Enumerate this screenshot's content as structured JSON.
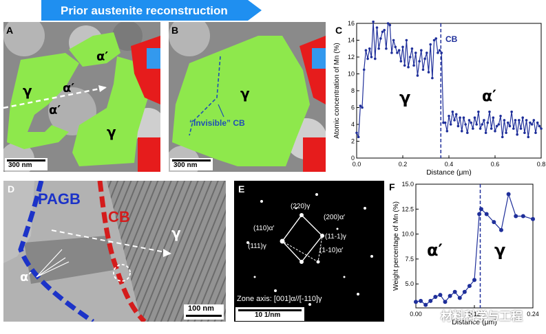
{
  "banner": {
    "text": "Prior austenite reconstruction",
    "color": "#1f8ff0"
  },
  "panels": {
    "A": {
      "label": "A",
      "gamma_top": "γ",
      "gamma_bottom": "γ",
      "alpha1": "α′",
      "alpha2": "α′",
      "alpha3": "α′",
      "scalebar": "300 nm"
    },
    "B": {
      "label": "B",
      "gamma": "γ",
      "annotation": "“Invisible” CB",
      "scalebar": "300 nm"
    },
    "C": {
      "label": "C",
      "cb_label": "CB",
      "gamma": "γ",
      "alpha": "α′"
    },
    "D": {
      "label": "D",
      "pagb": "PAGB",
      "cb": "CB",
      "gamma": "γ",
      "alpha": "α′",
      "scalebar": "100 nm"
    },
    "E": {
      "label": "E",
      "spots": [
        "(220)γ",
        "(200)α′",
        "(110)α′",
        "(111)γ",
        "(11-1)γ",
        "(1-10)α′"
      ],
      "zone_axis": "Zone axis: [001]α//[-110]γ",
      "scalebar": "10 1/nm"
    },
    "F": {
      "label": "F",
      "alpha": "α′",
      "gamma": "γ",
      "watermark": "材料科学与工程"
    }
  },
  "chart_data": [
    {
      "type": "line",
      "panel": "C",
      "xlabel": "Distance (μm)",
      "ylabel": "Atomic concentration of Mn (%)",
      "xlim": [
        0,
        0.8
      ],
      "ylim": [
        0,
        16
      ],
      "xticks": [
        "0.0",
        "0.2",
        "0.4",
        "0.6",
        "0.8"
      ],
      "yticks": [
        "0",
        "2",
        "4",
        "6",
        "8",
        "10",
        "12",
        "14",
        "16"
      ],
      "color": "#1f2f9a",
      "boundary_x": 0.365,
      "x": [
        0.0,
        0.008,
        0.016,
        0.024,
        0.032,
        0.04,
        0.048,
        0.056,
        0.064,
        0.072,
        0.08,
        0.088,
        0.096,
        0.104,
        0.112,
        0.12,
        0.128,
        0.136,
        0.144,
        0.152,
        0.16,
        0.168,
        0.176,
        0.184,
        0.192,
        0.2,
        0.208,
        0.216,
        0.224,
        0.232,
        0.24,
        0.248,
        0.256,
        0.264,
        0.272,
        0.28,
        0.288,
        0.296,
        0.304,
        0.312,
        0.32,
        0.328,
        0.336,
        0.344,
        0.352,
        0.36,
        0.368,
        0.376,
        0.384,
        0.392,
        0.4,
        0.408,
        0.416,
        0.424,
        0.432,
        0.44,
        0.448,
        0.456,
        0.464,
        0.472,
        0.48,
        0.488,
        0.496,
        0.504,
        0.512,
        0.52,
        0.528,
        0.536,
        0.544,
        0.552,
        0.56,
        0.568,
        0.576,
        0.584,
        0.592,
        0.6,
        0.608,
        0.616,
        0.624,
        0.632,
        0.64,
        0.648,
        0.656,
        0.664,
        0.672,
        0.68,
        0.688,
        0.696,
        0.704,
        0.712,
        0.72,
        0.728,
        0.736,
        0.744,
        0.752,
        0.76,
        0.768,
        0.776,
        0.784,
        0.792,
        0.8
      ],
      "values": [
        3.0,
        2.5,
        6.2,
        6.0,
        10.5,
        12.8,
        11.8,
        13.0,
        12.0,
        16.2,
        11.8,
        15.5,
        13.0,
        14.2,
        15.0,
        15.2,
        13.0,
        16.0,
        15.8,
        12.5,
        14.0,
        13.2,
        12.5,
        12.8,
        11.5,
        13.2,
        11.0,
        14.0,
        10.8,
        12.0,
        13.0,
        11.0,
        12.5,
        9.8,
        11.5,
        12.8,
        10.5,
        11.8,
        12.5,
        10.2,
        13.5,
        9.5,
        14.0,
        14.2,
        12.5,
        12.8,
        12.5,
        4.2,
        4.2,
        3.2,
        5.0,
        4.0,
        5.5,
        4.5,
        5.2,
        3.8,
        4.8,
        3.2,
        4.8,
        4.0,
        3.0,
        4.5,
        4.2,
        3.5,
        4.8,
        4.0,
        5.5,
        3.5,
        4.0,
        4.5,
        3.0,
        4.2,
        5.5,
        3.5,
        4.8,
        3.2,
        3.8,
        4.0,
        5.0,
        2.5,
        4.5,
        3.0,
        4.2,
        3.8,
        5.5,
        3.5,
        4.5,
        2.8,
        4.5,
        3.5,
        4.8,
        3.0,
        4.5,
        2.5,
        4.2,
        4.0,
        4.5,
        3.0,
        4.2,
        3.8,
        3.5
      ]
    },
    {
      "type": "line",
      "panel": "F",
      "xlabel": "Distance (μm)",
      "ylabel": "Weight percentage of Mn (%)",
      "xlim": [
        0,
        0.24
      ],
      "ylim": [
        2.6,
        15
      ],
      "xticks": [
        "0.00",
        "0.12",
        "0.24"
      ],
      "yticks": [
        "5.0",
        "7.5",
        "10.0",
        "12.5",
        "15.0"
      ],
      "color": "#1f2f9a",
      "boundary_x": 0.132,
      "x": [
        0.0,
        0.01,
        0.02,
        0.03,
        0.04,
        0.05,
        0.06,
        0.07,
        0.08,
        0.09,
        0.1,
        0.11,
        0.12,
        0.13,
        0.134,
        0.145,
        0.16,
        0.175,
        0.19,
        0.205,
        0.22,
        0.24
      ],
      "values": [
        3.2,
        3.3,
        2.9,
        3.3,
        3.7,
        3.9,
        3.2,
        3.8,
        4.2,
        3.6,
        4.2,
        4.8,
        5.4,
        12.0,
        12.5,
        12.0,
        11.2,
        10.4,
        14.0,
        11.8,
        11.8,
        11.5
      ]
    }
  ]
}
